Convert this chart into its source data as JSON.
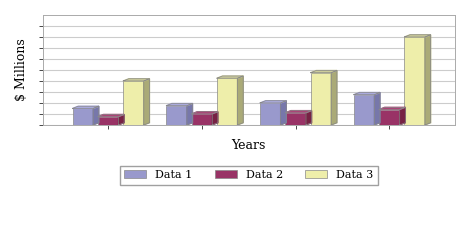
{
  "categories": [
    "",
    "",
    "",
    ""
  ],
  "data1": [
    3,
    3.5,
    4,
    5.5
  ],
  "data2": [
    1.5,
    2.0,
    2.2,
    2.8
  ],
  "data3": [
    8,
    8.5,
    9.5,
    16
  ],
  "color1": "#9999cc",
  "color2": "#993366",
  "color3": "#eeeeaa",
  "color1_side": "#7777aa",
  "color2_side": "#772244",
  "color3_side": "#aaaa77",
  "color1_top": "#aaaadd",
  "color2_top": "#aa4477",
  "color3_top": "#cccc99",
  "edge_color": "#888888",
  "xlabel": "Years",
  "ylabel": "$ Millions",
  "legend_labels": [
    "Data 1",
    "Data 2",
    "Data 3"
  ],
  "ylim": [
    0,
    20
  ],
  "yticks": [
    0,
    2,
    4,
    6,
    8,
    10,
    12,
    14,
    16,
    18
  ],
  "bg_color": "#ffffff",
  "plot_bg": "#ffffff",
  "grid_color": "#cccccc",
  "bar_width": 0.22,
  "axis_fontsize": 9,
  "legend_fontsize": 8
}
